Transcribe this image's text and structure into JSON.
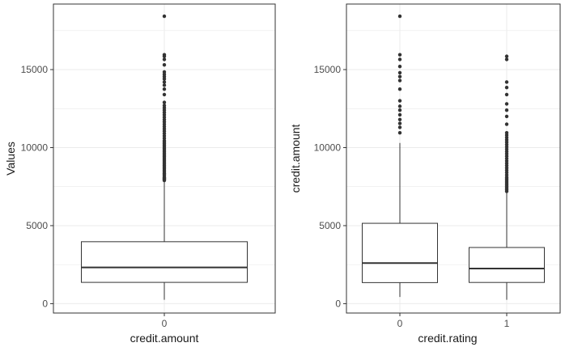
{
  "chart_data": [
    {
      "type": "boxplot",
      "xlabel": "credit.amount",
      "ylabel": "Values",
      "categories": [
        "0"
      ],
      "ylim": [
        -600,
        19200
      ],
      "y_ticks": [
        0,
        5000,
        10000,
        15000
      ],
      "y_tick_labels": [
        "0",
        "5000",
        "10000",
        "15000"
      ],
      "grid": true,
      "colors": {
        "box": "#333333",
        "outlier": "#333333",
        "grid": "#ebebeb",
        "panel_border": "#333333"
      },
      "boxes": [
        {
          "category": "0",
          "whisker_low": 250,
          "q1": 1365,
          "median": 2320,
          "q3": 3970,
          "whisker_high": 7880,
          "outliers": [
            7900,
            7950,
            8000,
            8050,
            8100,
            8200,
            8300,
            8350,
            8450,
            8550,
            8650,
            8750,
            8850,
            8950,
            9050,
            9150,
            9250,
            9350,
            9450,
            9550,
            9650,
            9750,
            9850,
            9950,
            10050,
            10150,
            10250,
            10350,
            10450,
            10600,
            10750,
            10900,
            11050,
            11200,
            11350,
            11500,
            11650,
            11800,
            11950,
            12100,
            12250,
            12400,
            12550,
            12700,
            12900,
            13400,
            13750,
            14000,
            14200,
            14400,
            14550,
            14700,
            14850,
            15300,
            15650,
            15850,
            15950,
            18420
          ]
        }
      ]
    },
    {
      "type": "boxplot",
      "xlabel": "credit.rating",
      "ylabel": "credit.amount",
      "categories": [
        "0",
        "1"
      ],
      "ylim": [
        -600,
        19200
      ],
      "y_ticks": [
        0,
        5000,
        10000,
        15000
      ],
      "y_tick_labels": [
        "0",
        "5000",
        "10000",
        "15000"
      ],
      "grid": true,
      "colors": {
        "box": "#333333",
        "outlier": "#333333",
        "grid": "#ebebeb",
        "panel_border": "#333333"
      },
      "boxes": [
        {
          "category": "0",
          "whisker_low": 430,
          "q1": 1350,
          "median": 2600,
          "q3": 5150,
          "whisker_high": 10300,
          "outliers": [
            10950,
            11300,
            11550,
            11800,
            12100,
            12400,
            12650,
            13000,
            13750,
            14300,
            14550,
            14800,
            15200,
            15650,
            15950,
            18420
          ]
        },
        {
          "category": "1",
          "whisker_low": 250,
          "q1": 1360,
          "median": 2250,
          "q3": 3600,
          "whisker_high": 7150,
          "outliers": [
            7200,
            7300,
            7400,
            7500,
            7600,
            7700,
            7800,
            7900,
            8000,
            8100,
            8250,
            8400,
            8550,
            8700,
            8850,
            9000,
            9150,
            9300,
            9450,
            9600,
            9750,
            9900,
            10050,
            10200,
            10350,
            10500,
            10650,
            10800,
            10950,
            11500,
            12000,
            12400,
            12800,
            13400,
            13850,
            14200,
            15650,
            15850
          ]
        }
      ]
    }
  ]
}
